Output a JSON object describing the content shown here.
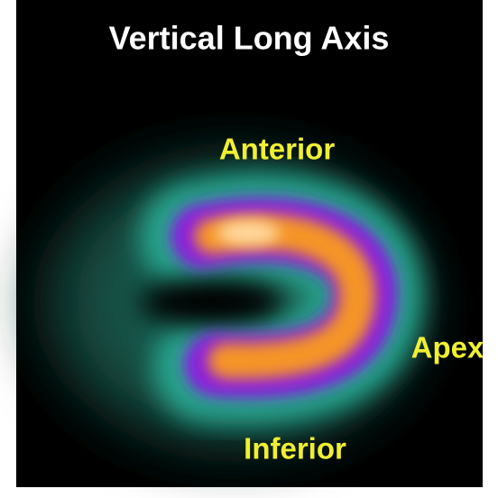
{
  "title": "Vertical Long Axis",
  "labels": {
    "anterior": "Anterior",
    "apex": "Apex",
    "inferior": "Inferior"
  }
}
